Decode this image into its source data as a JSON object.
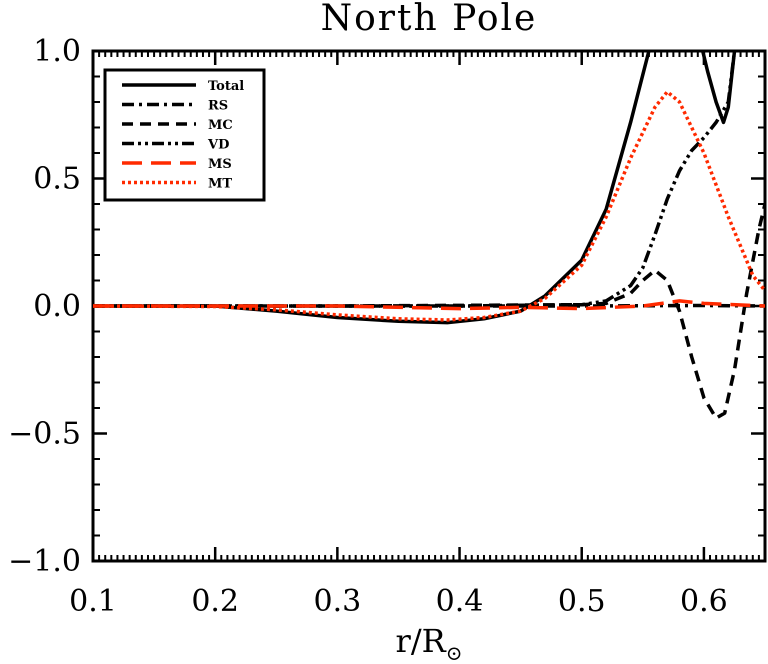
{
  "chart_data": {
    "type": "line",
    "title": "North Pole",
    "xlabel_main": "r/R",
    "xlabel_sub": "⊙",
    "ylabel": "",
    "xlim": [
      0.1,
      0.65
    ],
    "ylim": [
      -1.0,
      1.0
    ],
    "x_ticks": [
      0.1,
      0.2,
      0.3,
      0.4,
      0.5,
      0.6
    ],
    "x_tick_labels": [
      "0.1",
      "0.2",
      "0.3",
      "0.4",
      "0.5",
      "0.6"
    ],
    "y_ticks": [
      -1.0,
      -0.5,
      0.0,
      0.5,
      1.0
    ],
    "y_tick_labels": [
      "−1.0",
      "−0.5",
      "0.0",
      "0.5",
      "1.0"
    ],
    "grid": false,
    "legend_position": "top-left",
    "series": [
      {
        "name": "Total",
        "color": "#000000",
        "style": "solid",
        "points": [
          [
            0.1,
            0
          ],
          [
            0.2,
            0
          ],
          [
            0.25,
            -0.02
          ],
          [
            0.3,
            -0.045
          ],
          [
            0.35,
            -0.06
          ],
          [
            0.39,
            -0.065
          ],
          [
            0.42,
            -0.05
          ],
          [
            0.45,
            -0.02
          ],
          [
            0.47,
            0.04
          ],
          [
            0.5,
            0.18
          ],
          [
            0.52,
            0.38
          ],
          [
            0.54,
            0.72
          ],
          [
            0.555,
            1.0
          ]
        ]
      },
      {
        "name": "Total",
        "color": "#000000",
        "style": "solid",
        "points": [
          [
            0.599,
            1.0
          ],
          [
            0.603,
            0.92
          ],
          [
            0.61,
            0.8
          ],
          [
            0.616,
            0.72
          ],
          [
            0.62,
            0.78
          ],
          [
            0.625,
            1.0
          ]
        ]
      },
      {
        "name": "RS",
        "color": "#000000",
        "style": "dashdot",
        "points": [
          [
            0.1,
            0
          ],
          [
            0.3,
            0
          ],
          [
            0.5,
            0
          ],
          [
            0.6,
            0.002
          ],
          [
            0.65,
            0.0
          ]
        ]
      },
      {
        "name": "MC",
        "color": "#000000",
        "style": "dashed",
        "points": [
          [
            0.1,
            0
          ],
          [
            0.3,
            0
          ],
          [
            0.5,
            0.005
          ],
          [
            0.52,
            0.01
          ],
          [
            0.54,
            0.05
          ],
          [
            0.55,
            0.1
          ],
          [
            0.56,
            0.14
          ],
          [
            0.57,
            0.1
          ],
          [
            0.58,
            -0.02
          ],
          [
            0.59,
            -0.2
          ],
          [
            0.6,
            -0.36
          ],
          [
            0.61,
            -0.44
          ],
          [
            0.617,
            -0.42
          ],
          [
            0.625,
            -0.25
          ],
          [
            0.635,
            0.05
          ],
          [
            0.645,
            0.3
          ],
          [
            0.65,
            0.4
          ]
        ]
      },
      {
        "name": "VD",
        "color": "#000000",
        "style": "dashdotdot",
        "points": [
          [
            0.1,
            0
          ],
          [
            0.4,
            0
          ],
          [
            0.5,
            0.005
          ],
          [
            0.52,
            0.02
          ],
          [
            0.54,
            0.08
          ],
          [
            0.55,
            0.15
          ],
          [
            0.56,
            0.28
          ],
          [
            0.57,
            0.42
          ],
          [
            0.58,
            0.53
          ],
          [
            0.59,
            0.61
          ],
          [
            0.6,
            0.66
          ],
          [
            0.61,
            0.72
          ],
          [
            0.62,
            0.8
          ],
          [
            0.625,
            1.0
          ]
        ]
      },
      {
        "name": "MS",
        "color": "#ff2a00",
        "style": "longdash",
        "points": [
          [
            0.1,
            0
          ],
          [
            0.2,
            0
          ],
          [
            0.3,
            0
          ],
          [
            0.4,
            -0.01
          ],
          [
            0.45,
            -0.005
          ],
          [
            0.5,
            -0.01
          ],
          [
            0.55,
            0.0
          ],
          [
            0.58,
            0.02
          ],
          [
            0.6,
            0.01
          ],
          [
            0.65,
            0.0
          ]
        ]
      },
      {
        "name": "MT",
        "color": "#ff2a00",
        "style": "dotted",
        "points": [
          [
            0.1,
            0
          ],
          [
            0.2,
            -0.002
          ],
          [
            0.25,
            -0.015
          ],
          [
            0.3,
            -0.035
          ],
          [
            0.35,
            -0.05
          ],
          [
            0.39,
            -0.055
          ],
          [
            0.42,
            -0.045
          ],
          [
            0.45,
            -0.02
          ],
          [
            0.47,
            0.03
          ],
          [
            0.5,
            0.16
          ],
          [
            0.52,
            0.35
          ],
          [
            0.54,
            0.58
          ],
          [
            0.56,
            0.78
          ],
          [
            0.57,
            0.84
          ],
          [
            0.58,
            0.8
          ],
          [
            0.6,
            0.6
          ],
          [
            0.62,
            0.35
          ],
          [
            0.64,
            0.12
          ],
          [
            0.65,
            0.06
          ]
        ]
      }
    ],
    "legend": [
      {
        "label": "Total",
        "color": "#000000",
        "style": "solid"
      },
      {
        "label": "RS",
        "color": "#000000",
        "style": "dashdot"
      },
      {
        "label": "MC",
        "color": "#000000",
        "style": "dashed"
      },
      {
        "label": "VD",
        "color": "#000000",
        "style": "dashdotdot"
      },
      {
        "label": "MS",
        "color": "#ff2a00",
        "style": "longdash"
      },
      {
        "label": "MT",
        "color": "#ff2a00",
        "style": "dotted"
      }
    ]
  }
}
